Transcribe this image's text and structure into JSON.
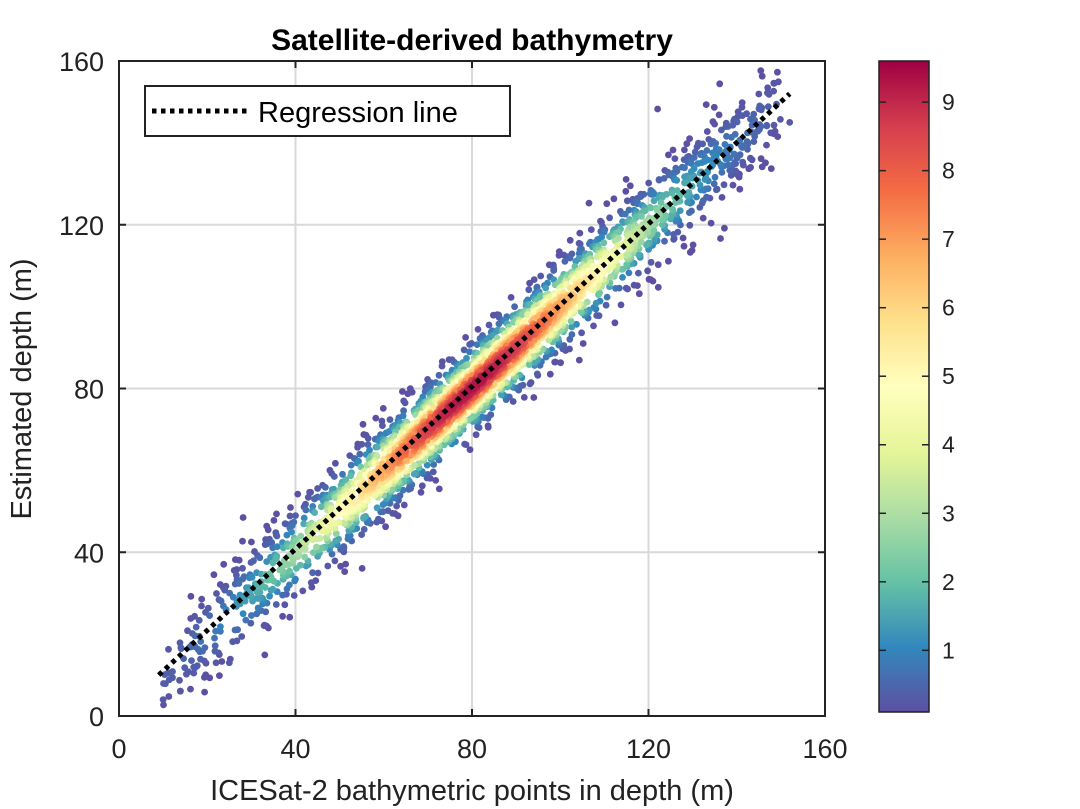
{
  "chart_data": {
    "type": "scatter",
    "title": "Satellite-derived bathymetry",
    "xlabel": "ICESat-2 bathymetric points in depth (m)",
    "ylabel": "Estimated depth (m)",
    "xlim": [
      0,
      160
    ],
    "ylim": [
      0,
      160
    ],
    "xticks": [
      0,
      40,
      80,
      120,
      160
    ],
    "yticks": [
      0,
      40,
      80,
      120,
      160
    ],
    "grid": true,
    "legend": {
      "entries": [
        "Regression line"
      ],
      "placement": "top-left"
    },
    "regression_line": {
      "x": [
        9,
        152
      ],
      "y": [
        10,
        152
      ],
      "style": "dotted",
      "color": "#000000"
    },
    "point_cloud": {
      "description_values": "density-colored points along regression line",
      "center_points": [
        [
          10,
          4
        ],
        [
          20,
          14
        ],
        [
          30,
          30
        ],
        [
          40,
          40
        ],
        [
          50,
          50
        ],
        [
          60,
          61
        ],
        [
          70,
          71
        ],
        [
          80,
          80
        ],
        [
          90,
          90
        ],
        [
          100,
          100
        ],
        [
          110,
          110
        ],
        [
          120,
          119
        ],
        [
          130,
          130
        ],
        [
          140,
          140
        ],
        [
          152,
          145
        ]
      ],
      "spread_y": 9,
      "count": 3000
    },
    "colorbar": {
      "min": 0.1,
      "max": 9.6,
      "ticks": [
        1,
        2,
        3,
        4,
        5,
        6,
        7,
        8,
        9
      ],
      "colormap": [
        "#5e4fa2",
        "#3288bd",
        "#66c2a5",
        "#abdda4",
        "#e6f598",
        "#ffffbf",
        "#fee08b",
        "#fdae61",
        "#f46d43",
        "#d53e4f",
        "#9e0142"
      ]
    }
  }
}
